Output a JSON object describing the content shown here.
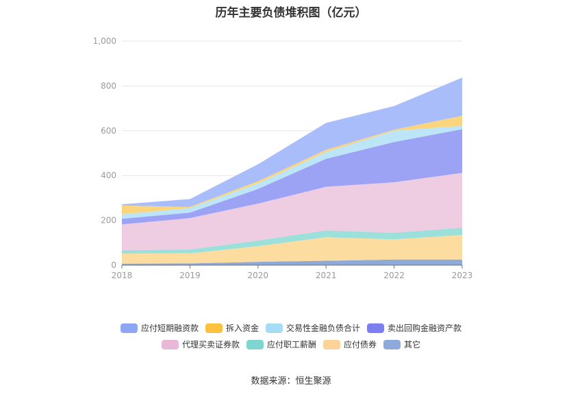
{
  "chart_data": {
    "type": "area",
    "stacked": true,
    "title": "历年主要负债堆积图（亿元）",
    "x": [
      "2018",
      "2019",
      "2020",
      "2021",
      "2022",
      "2023"
    ],
    "ylim": [
      0,
      1000
    ],
    "yticks": [
      0,
      200,
      400,
      600,
      800,
      1000
    ],
    "ytick_labels": [
      "0",
      "200",
      "400",
      "600",
      "800",
      "1,000"
    ],
    "grid": true,
    "legend_position": "bottom",
    "series": [
      {
        "name": "其它",
        "color": "#8eaadb",
        "values": [
          7,
          8,
          15,
          20,
          25,
          25
        ]
      },
      {
        "name": "应付债券",
        "color": "#fddca0",
        "values": [
          45,
          45,
          70,
          105,
          90,
          110
        ]
      },
      {
        "name": "应付职工薪酬",
        "color": "#9be0da",
        "values": [
          15,
          17,
          25,
          30,
          30,
          32
        ]
      },
      {
        "name": "代理买卖证券款",
        "color": "#eecde3",
        "values": [
          115,
          140,
          165,
          195,
          225,
          245
        ]
      },
      {
        "name": "卖出回购金融资产款",
        "color": "#9ca3f5",
        "values": [
          25,
          25,
          65,
          125,
          180,
          195
        ]
      },
      {
        "name": "交易性金融负债合计",
        "color": "#bce6f8",
        "values": [
          20,
          20,
          25,
          30,
          50,
          15
        ]
      },
      {
        "name": "拆入资金",
        "color": "#fbd47e",
        "values": [
          40,
          5,
          10,
          10,
          5,
          45
        ]
      },
      {
        "name": "应付短期融资款",
        "color": "#a8bdfa",
        "values": [
          5,
          35,
          75,
          120,
          105,
          170
        ]
      }
    ],
    "legend": [
      {
        "name": "应付短期融资款",
        "color": "#8da7f5"
      },
      {
        "name": "拆入资金",
        "color": "#fcc23f"
      },
      {
        "name": "交易性金融负债合计",
        "color": "#a6dcf6"
      },
      {
        "name": "卖出回购金融资产款",
        "color": "#7b7ff0"
      },
      {
        "name": "代理买卖证券款",
        "color": "#e8b8d8"
      },
      {
        "name": "应付职工薪酬",
        "color": "#7fd6d0"
      },
      {
        "name": "应付债券",
        "color": "#fcd49a"
      },
      {
        "name": "其它",
        "color": "#8eaadb"
      }
    ],
    "source": "数据来源：恒生聚源"
  }
}
